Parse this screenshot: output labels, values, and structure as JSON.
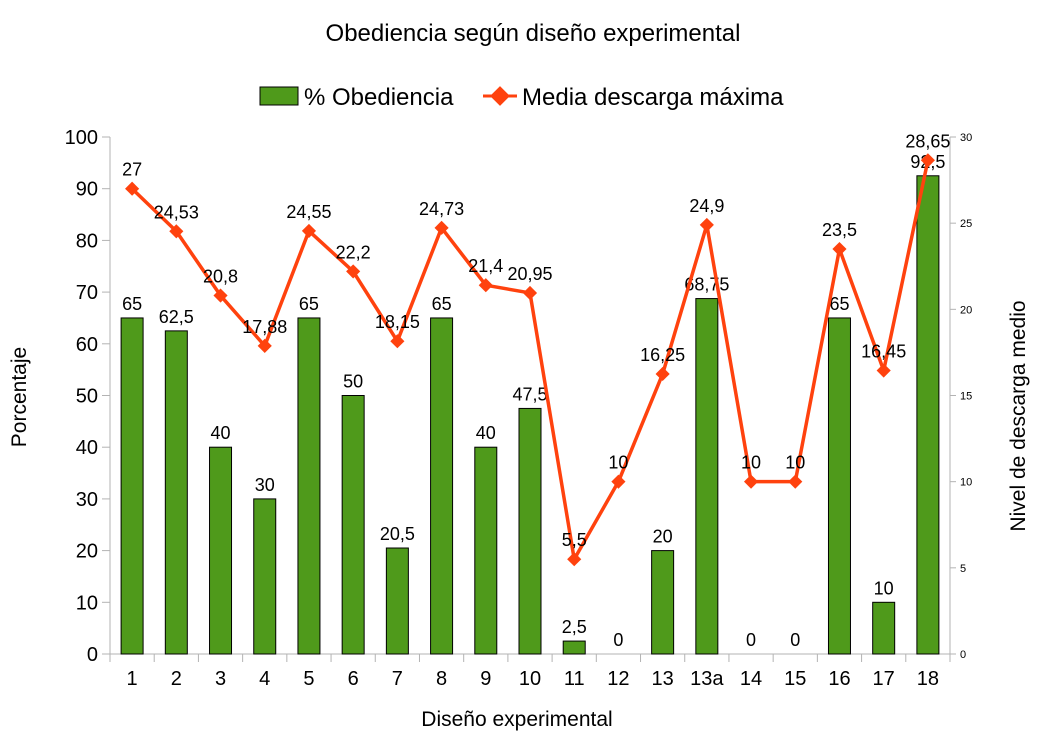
{
  "chart_data": {
    "type": "bar",
    "title": "Obediencia según diseño experimental",
    "xlabel": "Diseño experimental",
    "ylabel": "Porcentaje",
    "y2label": "Nivel de descarga medio",
    "categories": [
      "1",
      "2",
      "3",
      "4",
      "5",
      "6",
      "7",
      "8",
      "9",
      "10",
      "11",
      "12",
      "13",
      "13a",
      "14",
      "15",
      "16",
      "17",
      "18"
    ],
    "ylim": [
      0,
      100
    ],
    "yticks": [
      "0",
      "10",
      "20",
      "30",
      "40",
      "50",
      "60",
      "70",
      "80",
      "90",
      "100"
    ],
    "y2lim": [
      0,
      30
    ],
    "y2ticks": [
      "0",
      "5",
      "10",
      "15",
      "20",
      "25",
      "30"
    ],
    "grid": false,
    "legend_position": "top-center",
    "series": [
      {
        "name": "% Obediencia",
        "type": "bar",
        "axis": "left",
        "color": "#4f9a1b",
        "values": [
          65,
          62.5,
          40,
          30,
          65,
          50,
          20.5,
          65,
          40,
          47.5,
          2.5,
          0,
          20,
          68.75,
          0,
          0,
          65,
          10,
          92.5
        ],
        "labels": [
          "65",
          "62,5",
          "40",
          "30",
          "65",
          "50",
          "20,5",
          "65",
          "40",
          "47,5",
          "2,5",
          "0",
          "20",
          "68,75",
          "0",
          "0",
          "65",
          "10",
          "92,5"
        ]
      },
      {
        "name": "Media descarga máxima",
        "type": "line",
        "axis": "right",
        "color": "#ff420e",
        "values": [
          27,
          24.53,
          20.8,
          17.88,
          24.55,
          22.2,
          18.15,
          24.73,
          21.4,
          20.95,
          5.5,
          10,
          16.25,
          24.9,
          10,
          10,
          23.5,
          16.45,
          28.65
        ],
        "labels": [
          "27",
          "24,53",
          "20,8",
          "17,88",
          "24,55",
          "22,2",
          "18,15",
          "24,73",
          "21,4",
          "20,95",
          "5,5",
          "10",
          "16,25",
          "24,9",
          "10",
          "10",
          "23,5",
          "16,45",
          "28,65"
        ]
      }
    ]
  }
}
